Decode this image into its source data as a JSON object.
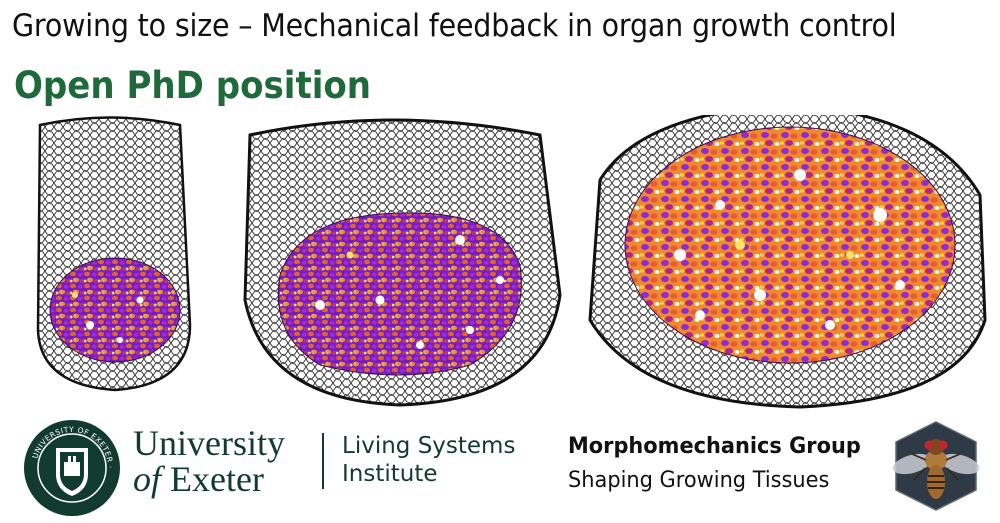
{
  "header": {
    "title": "Growing to size – Mechanical feedback in organ growth control",
    "subtitle": "Open PhD position"
  },
  "university": {
    "line1": "University",
    "line2_of": "of",
    "line2_name": "Exeter",
    "crest_text": "UNIVERSITY OF EXETER · LUCEM SEQUIMUR",
    "institute_line1": "Living Systems",
    "institute_line2": "Institute"
  },
  "group": {
    "name": "Morphomechanics Group",
    "tagline": "Shaping Growing Tissues"
  },
  "colors": {
    "title_green": "#1e6a3a",
    "uni_green": "#123b30",
    "cell_purple": "#8a2be2",
    "cell_orange": "#f28c28",
    "badge_bg": "#2e3a46"
  }
}
